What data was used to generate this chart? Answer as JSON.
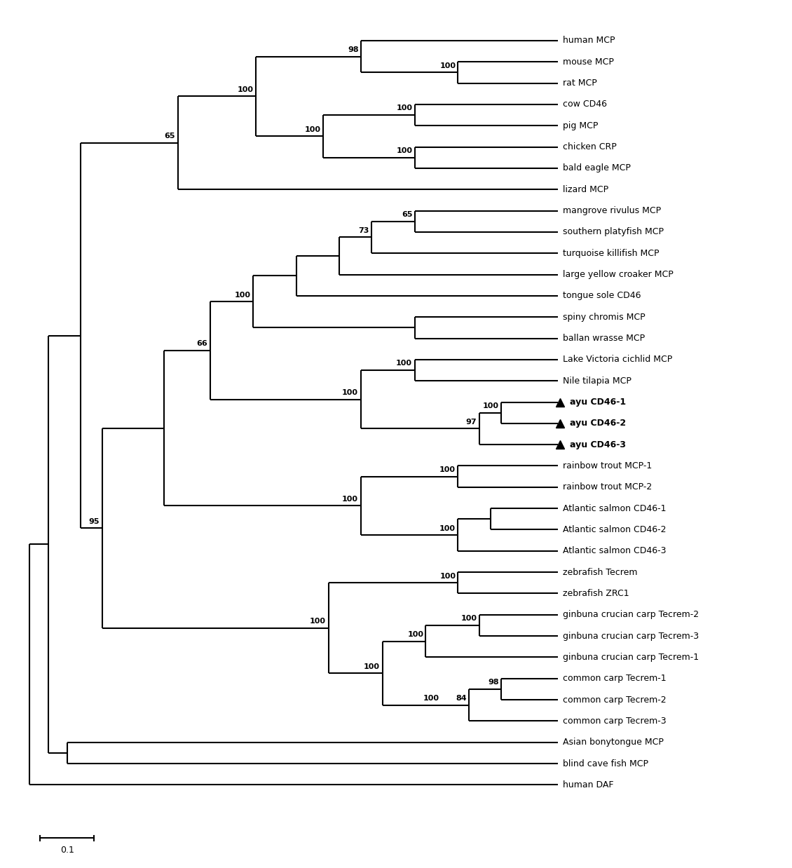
{
  "figsize": [
    11.3,
    12.38
  ],
  "dpi": 100,
  "background": "#ffffff",
  "scalebar_label": "0.1",
  "taxa": [
    "human MCP",
    "mouse MCP",
    "rat MCP",
    "cow CD46",
    "pig MCP",
    "chicken CRP",
    "bald eagle MCP",
    "lizard MCP",
    "mangrove rivulus MCP",
    "southern platyfish MCP",
    "turquoise killifish MCP",
    "large yellow croaker MCP",
    "tongue sole CD46",
    "spiny chromis MCP",
    "ballan wrasse MCP",
    "Lake Victoria cichlid MCP",
    "Nile tilapia MCP",
    "ayu CD46-1",
    "ayu CD46-2",
    "ayu CD46-3",
    "rainbow trout MCP-1",
    "rainbow trout MCP-2",
    "Atlantic salmon CD46-1",
    "Atlantic salmon CD46-2",
    "Atlantic salmon CD46-3",
    "zebrafish Tecrem",
    "zebrafish ZRC1",
    "ginbuna crucian carp Tecrem-2",
    "ginbuna crucian carp Tecrem-3",
    "ginbuna crucian carp Tecrem-1",
    "common carp Tecrem-1",
    "common carp Tecrem-2",
    "common carp Tecrem-3",
    "Asian bonytongue MCP",
    "blind cave fish MCP",
    "human DAF"
  ],
  "font_size_labels": 9,
  "font_size_bootstrap": 8,
  "line_width": 1.5,
  "marker_size": 8
}
